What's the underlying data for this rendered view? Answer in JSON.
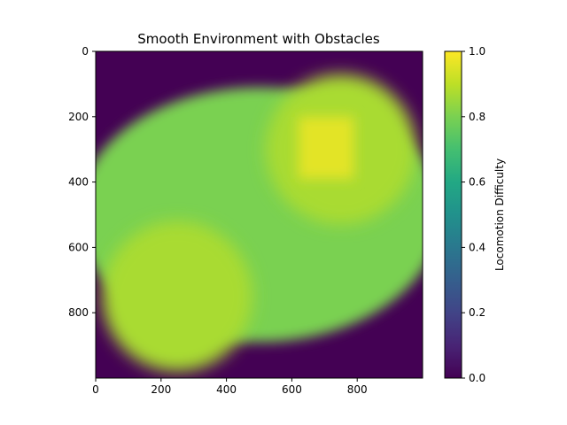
{
  "chart_data": {
    "type": "heatmap",
    "title": "Smooth Environment with Obstacles",
    "xlabel": "",
    "ylabel": "",
    "x_range": [
      0,
      1000
    ],
    "y_range": [
      0,
      1000
    ],
    "y_inverted": true,
    "x_ticks": [
      0,
      200,
      400,
      600,
      800
    ],
    "y_ticks": [
      0,
      200,
      400,
      600,
      800
    ],
    "colormap": "viridis",
    "colorbar": {
      "label": "Locomotion Difficulty",
      "range": [
        0.0,
        1.0
      ],
      "ticks": [
        "0.0",
        "0.2",
        "0.4",
        "0.6",
        "0.8",
        "1.0"
      ]
    },
    "field": {
      "background_value": 0.0,
      "base_region": {
        "shape": "ellipse",
        "center": [
          500,
          500
        ],
        "radii": [
          555,
          390
        ],
        "value": 0.8
      },
      "obstacles": [
        {
          "shape": "circle",
          "center": [
            750,
            300
          ],
          "radius": 230,
          "value": 0.87
        },
        {
          "shape": "circle",
          "center": [
            250,
            750
          ],
          "radius": 230,
          "value": 0.87
        },
        {
          "shape": "square",
          "x": [
            620,
            790
          ],
          "y": [
            200,
            390
          ],
          "value": 0.96
        }
      ]
    }
  }
}
